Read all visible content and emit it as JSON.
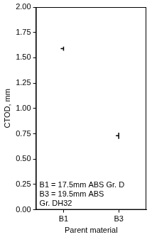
{
  "chart_data": {
    "type": "scatter",
    "categories": [
      "B1",
      "B3"
    ],
    "values": [
      1.59,
      0.73
    ],
    "low": [
      1.57,
      0.7
    ],
    "high": [
      1.61,
      0.76
    ],
    "color": "#000000",
    "x_label": "Parent material",
    "y_label": "CTOD, mm",
    "ylim": [
      0,
      2
    ],
    "yticks": [
      {
        "value": 0,
        "label": "0.00"
      },
      {
        "value": 0.25,
        "label": "0.25"
      },
      {
        "value": 0.5,
        "label": "0.50"
      },
      {
        "value": 0.75,
        "label": "0.75"
      },
      {
        "value": 1,
        "label": "1.00"
      },
      {
        "value": 1.25,
        "label": "1.25"
      },
      {
        "value": 1.5,
        "label": "1.50"
      },
      {
        "value": 1.75,
        "label": "1.75"
      },
      {
        "value": 2,
        "label": "2.00"
      }
    ],
    "annotations": [
      "B1 = 17.5mm ABS Gr. D",
      "B3 = 19.5mm ABS",
      "Gr. DH32"
    ],
    "grid": false
  }
}
